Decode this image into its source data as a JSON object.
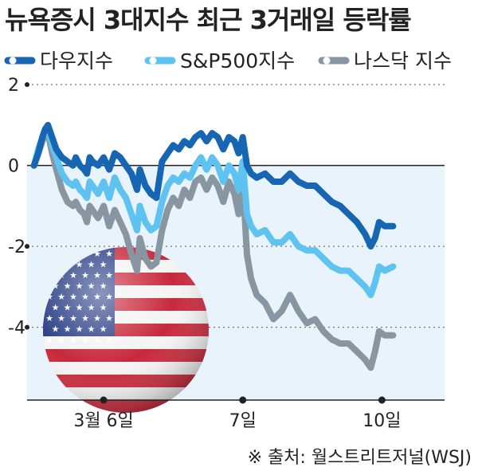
{
  "chart_data": {
    "type": "line",
    "title": "뉴욕증시 3대지수 최근 3거래일 등락률",
    "xlabel": "",
    "ylabel": "",
    "ylim": [
      -5.8,
      2.2
    ],
    "yticks": [
      2,
      0,
      -2,
      -4
    ],
    "ytick_labels": [
      "2",
      "0",
      "-2",
      "-4"
    ],
    "xtick_labels": [
      "3월 6일",
      "7일",
      "10일"
    ],
    "xtick_positions": [
      0.5,
      1.5,
      2.5
    ],
    "grid": "dotted horizontal",
    "legend_position": "top",
    "negative_region_color": "#e9f3fb",
    "series": [
      {
        "name": "다우지수",
        "color": "#1766b3",
        "x": [
          0,
          0.03,
          0.06,
          0.08,
          0.1,
          0.13,
          0.16,
          0.2,
          0.24,
          0.28,
          0.3,
          0.33,
          0.36,
          0.38,
          0.4,
          0.42,
          0.46,
          0.5,
          0.54,
          0.58,
          0.62,
          0.66,
          0.7,
          0.74,
          0.76,
          0.8,
          0.84,
          0.88,
          0.92,
          0.96,
          1.0,
          1.04,
          1.08,
          1.12,
          1.16,
          1.2,
          1.24,
          1.28,
          1.32,
          1.36,
          1.4,
          1.44,
          1.47,
          1.5,
          1.53,
          1.56,
          1.6,
          1.66,
          1.72,
          1.78,
          1.84,
          1.9,
          1.96,
          2.02,
          2.08,
          2.14,
          2.2,
          2.26,
          2.32,
          2.38,
          2.42,
          2.45,
          2.48,
          2.52,
          2.58
        ],
        "values": [
          0,
          0.3,
          0.7,
          0.9,
          1.0,
          0.7,
          0.4,
          0.2,
          0.1,
          0.0,
          0.2,
          0.0,
          -0.1,
          -0.2,
          0.2,
          0.1,
          0.0,
          0.2,
          -0.1,
          0.3,
          0.2,
          0.0,
          -0.2,
          -0.6,
          -0.1,
          -0.5,
          -0.7,
          -0.8,
          0.1,
          0.3,
          0.5,
          0.4,
          0.6,
          0.5,
          0.7,
          0.8,
          0.6,
          0.8,
          0.7,
          0.4,
          0.7,
          0.6,
          0.3,
          0.7,
          0.0,
          -0.2,
          -0.3,
          -0.2,
          -0.4,
          -0.4,
          -0.2,
          -0.4,
          -0.5,
          -0.5,
          -0.7,
          -0.9,
          -1.0,
          -1.2,
          -1.4,
          -1.7,
          -2.0,
          -1.8,
          -1.4,
          -1.5,
          -1.5
        ]
      },
      {
        "name": "S&P500지수",
        "color": "#5ec3f0",
        "x": [
          0,
          0.03,
          0.06,
          0.08,
          0.1,
          0.13,
          0.16,
          0.2,
          0.24,
          0.28,
          0.3,
          0.33,
          0.36,
          0.38,
          0.4,
          0.42,
          0.46,
          0.5,
          0.54,
          0.58,
          0.62,
          0.66,
          0.7,
          0.74,
          0.76,
          0.8,
          0.84,
          0.88,
          0.92,
          0.96,
          1.0,
          1.04,
          1.08,
          1.12,
          1.16,
          1.2,
          1.24,
          1.28,
          1.32,
          1.36,
          1.4,
          1.44,
          1.47,
          1.5,
          1.53,
          1.56,
          1.6,
          1.66,
          1.72,
          1.78,
          1.84,
          1.9,
          1.96,
          2.02,
          2.08,
          2.14,
          2.2,
          2.26,
          2.32,
          2.38,
          2.42,
          2.45,
          2.48,
          2.52,
          2.58
        ],
        "values": [
          0,
          0.4,
          0.7,
          0.9,
          0.9,
          0.5,
          0.2,
          -0.2,
          -0.4,
          -0.5,
          -0.4,
          -0.6,
          -0.7,
          -0.8,
          -0.4,
          -0.5,
          -0.7,
          -0.4,
          -0.8,
          -0.3,
          -0.6,
          -0.8,
          -1.2,
          -1.6,
          -1.0,
          -1.4,
          -1.6,
          -1.5,
          -0.9,
          -0.5,
          -0.3,
          -0.4,
          -0.2,
          -0.3,
          0.0,
          0.2,
          -0.1,
          0.2,
          0.0,
          -0.4,
          0.0,
          -0.2,
          -0.6,
          0.1,
          -1.2,
          -1.5,
          -1.7,
          -1.6,
          -1.9,
          -1.9,
          -1.7,
          -2.0,
          -2.1,
          -2.1,
          -2.3,
          -2.5,
          -2.6,
          -2.6,
          -2.8,
          -3.0,
          -3.2,
          -2.9,
          -2.5,
          -2.6,
          -2.5
        ]
      },
      {
        "name": "나스닥 지수",
        "color": "#8796a0",
        "x": [
          0,
          0.03,
          0.06,
          0.08,
          0.1,
          0.13,
          0.16,
          0.2,
          0.24,
          0.28,
          0.3,
          0.33,
          0.36,
          0.38,
          0.4,
          0.42,
          0.46,
          0.5,
          0.54,
          0.58,
          0.62,
          0.66,
          0.7,
          0.74,
          0.76,
          0.8,
          0.84,
          0.88,
          0.92,
          0.96,
          1.0,
          1.04,
          1.08,
          1.12,
          1.16,
          1.2,
          1.24,
          1.28,
          1.32,
          1.36,
          1.4,
          1.44,
          1.47,
          1.5,
          1.53,
          1.56,
          1.6,
          1.66,
          1.72,
          1.78,
          1.84,
          1.9,
          1.96,
          2.02,
          2.08,
          2.14,
          2.2,
          2.26,
          2.32,
          2.38,
          2.42,
          2.45,
          2.48,
          2.52,
          2.58
        ],
        "values": [
          0,
          0.3,
          0.6,
          0.8,
          0.8,
          0.3,
          -0.1,
          -0.6,
          -0.9,
          -1.0,
          -0.9,
          -1.1,
          -1.2,
          -1.4,
          -1.0,
          -1.1,
          -1.3,
          -1.0,
          -1.5,
          -1.1,
          -1.4,
          -1.7,
          -2.2,
          -2.6,
          -1.8,
          -2.3,
          -2.5,
          -2.4,
          -1.6,
          -1.1,
          -0.8,
          -1.0,
          -0.6,
          -0.8,
          -0.4,
          -0.3,
          -0.6,
          -0.3,
          -0.5,
          -0.9,
          -0.4,
          -0.7,
          -1.2,
          -0.4,
          -2.2,
          -2.8,
          -3.2,
          -3.4,
          -3.8,
          -3.6,
          -3.2,
          -3.6,
          -3.9,
          -3.8,
          -4.1,
          -4.3,
          -4.4,
          -4.4,
          -4.6,
          -4.8,
          -5.0,
          -4.6,
          -4.1,
          -4.2,
          -4.2
        ]
      }
    ]
  },
  "source_note": "※ 출처: 월스트리트저널(WSJ)"
}
